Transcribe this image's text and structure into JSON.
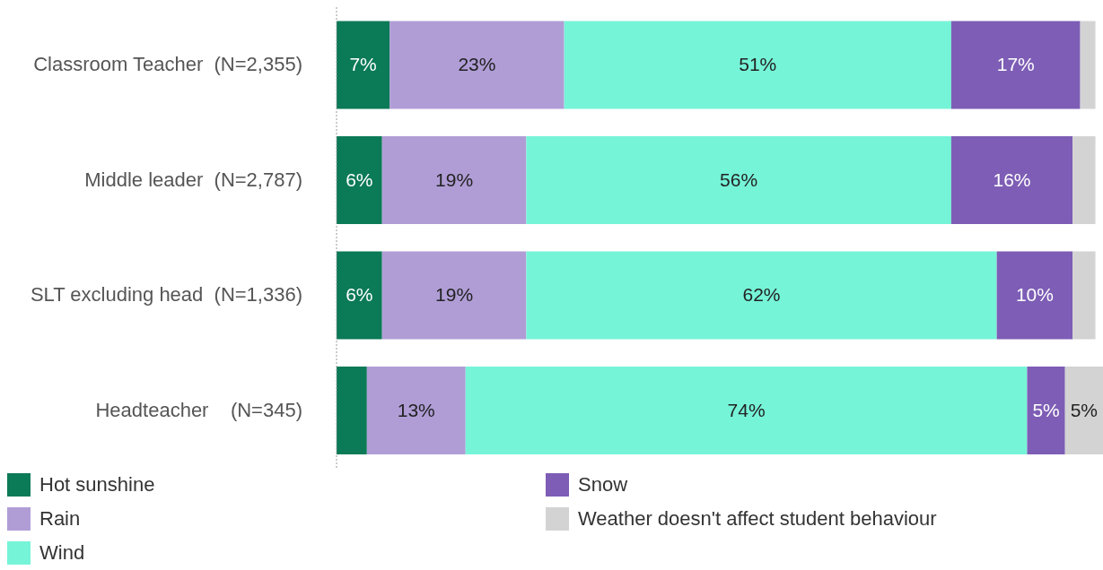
{
  "chart_data": {
    "type": "bar",
    "orientation": "horizontal",
    "stacked": true,
    "categories": [
      "Classroom Teacher  (N=2,355)",
      "Middle leader  (N=2,787)",
      "SLT excluding head  (N=1,336)",
      "Headteacher    (N=345)"
    ],
    "series": [
      {
        "name": "Hot sunshine",
        "color": "#0b7a56",
        "values": [
          7,
          6,
          6,
          4
        ],
        "value_labels": [
          "7%",
          "6%",
          "6%",
          null
        ]
      },
      {
        "name": "Rain",
        "color": "#b09dd6",
        "values": [
          23,
          19,
          19,
          13
        ],
        "value_labels": [
          "23%",
          "19%",
          "19%",
          "13%"
        ]
      },
      {
        "name": "Wind",
        "color": "#76f4d8",
        "values": [
          51,
          56,
          62,
          74
        ],
        "value_labels": [
          "51%",
          "56%",
          "62%",
          "74%"
        ]
      },
      {
        "name": "Snow",
        "color": "#7d5db5",
        "values": [
          17,
          16,
          10,
          5
        ],
        "value_labels": [
          "17%",
          "16%",
          "10%",
          "5%"
        ]
      },
      {
        "name": "Weather doesn't affect student behaviour",
        "color": "#d3d3d3",
        "values": [
          2,
          3,
          3,
          5
        ],
        "value_labels": [
          null,
          null,
          null,
          "5%"
        ]
      }
    ],
    "legend": "bottom",
    "grid": false
  }
}
